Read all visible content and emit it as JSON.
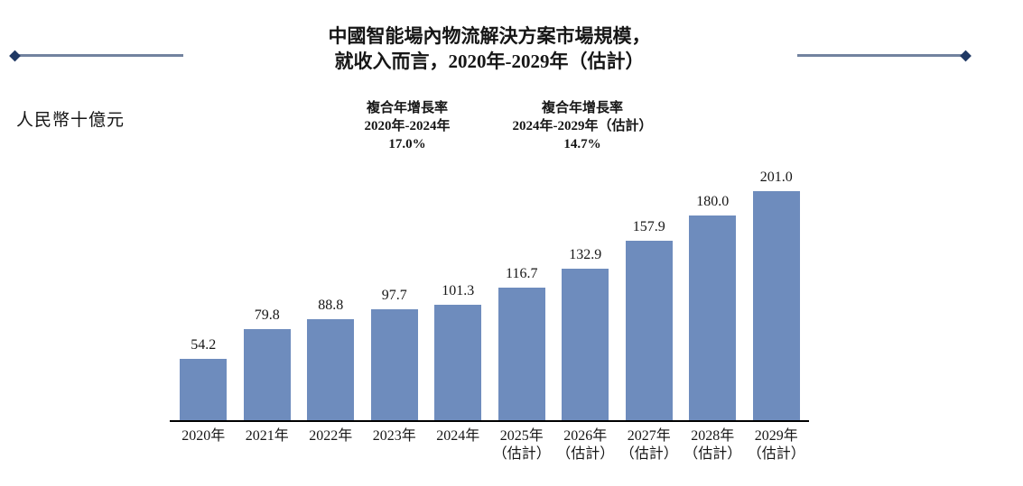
{
  "title": {
    "line1": "中國智能場內物流解決方案市場規模，",
    "line2": "就收入而言，2020年-2029年（估計）"
  },
  "unit_label": "人民幣十億元",
  "cagr": [
    {
      "label": "複合年增長率",
      "period": "2020年-2024年",
      "value": "17.0%"
    },
    {
      "label": "複合年增長率",
      "period": "2024年-2029年（估計）",
      "value": "14.7%"
    }
  ],
  "chart_data": {
    "type": "bar",
    "title": "中國智能場內物流解決方案市場規模，就收入而言，2020年-2029年（估計）",
    "xlabel": "",
    "ylabel": "人民幣十億元",
    "categories": [
      "2020年",
      "2021年",
      "2022年",
      "2023年",
      "2024年",
      "2025年",
      "2026年",
      "2027年",
      "2028年",
      "2029年"
    ],
    "category_sublabels": [
      "",
      "",
      "",
      "",
      "",
      "（估計）",
      "（估計）",
      "（估計）",
      "（估計）",
      "（估計）"
    ],
    "values": [
      54.2,
      79.8,
      88.8,
      97.7,
      101.3,
      116.7,
      132.9,
      157.9,
      180.0,
      201.0
    ],
    "value_labels": [
      "54.2",
      "79.8",
      "88.8",
      "97.7",
      "101.3",
      "116.7",
      "132.9",
      "157.9",
      "180.0",
      "201.0"
    ],
    "ylim": [
      0,
      210
    ],
    "grid": false,
    "legend": "none",
    "annotations": [
      "複合年增長率 2020年-2024年 17.0%",
      "複合年增長率 2024年-2029年（估計） 14.7%"
    ]
  },
  "colors": {
    "bar": "#6e8cbd",
    "decor_line": "#72839f",
    "diamond": "#1f3864",
    "axis": "#000000",
    "text": "#161616"
  }
}
